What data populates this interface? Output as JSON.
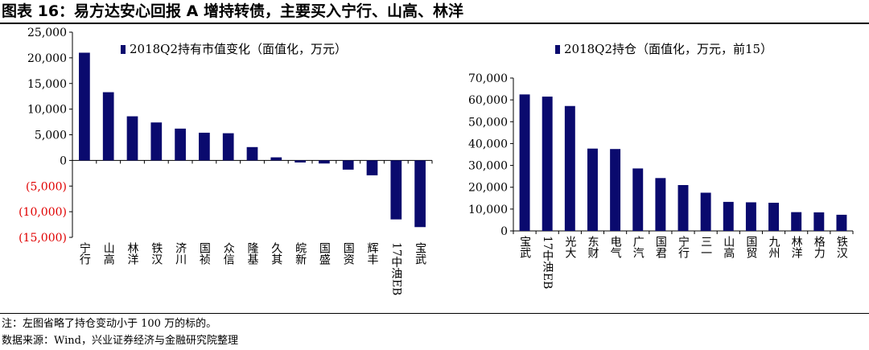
{
  "figure": {
    "title": "图表 16：易方达安心回报 A 增持转债，主要买入宁行、山高、林洋",
    "note": "注：左图省略了持仓变动小于 100 万的标的。",
    "source": "数据来源：Wind，兴业证券经济与金融研究院整理"
  },
  "colors": {
    "bar": "#0a0a6e",
    "negative_tick": "#e00000",
    "text": "#000000"
  },
  "chart_data": [
    {
      "type": "bar",
      "title": "",
      "xlabel": "",
      "ylabel": "",
      "legend": "top",
      "grid": false,
      "ylim": [
        -15000,
        25000
      ],
      "yticks": [
        25000,
        20000,
        15000,
        10000,
        5000,
        0,
        -5000,
        -10000,
        -15000
      ],
      "ytick_labels": [
        "25,000",
        "20,000",
        "15,000",
        "10,000",
        "5,000",
        "0",
        "(5,000)",
        "(10,000)",
        "(15,000)"
      ],
      "categories": [
        "宁行",
        "山高",
        "林洋",
        "铁汉",
        "济川",
        "国祯",
        "众信",
        "隆基",
        "久其",
        "皖新",
        "国盛",
        "国资",
        "辉丰",
        "17中油EB",
        "宝武"
      ],
      "series": [
        {
          "name": "2018Q2持有市值变化（面值化，万元）",
          "values": [
            21000,
            13300,
            8600,
            7400,
            6200,
            5400,
            5300,
            2600,
            600,
            -400,
            -600,
            -1800,
            -2900,
            -11500,
            -13000
          ]
        }
      ]
    },
    {
      "type": "bar",
      "title": "",
      "xlabel": "",
      "ylabel": "",
      "legend": "top",
      "grid": false,
      "ylim": [
        0,
        70000
      ],
      "yticks": [
        0,
        10000,
        20000,
        30000,
        40000,
        50000,
        60000,
        70000
      ],
      "ytick_labels": [
        "0",
        "10,000",
        "20,000",
        "30,000",
        "40,000",
        "50,000",
        "60,000",
        "70,000"
      ],
      "categories": [
        "宝武",
        "17中油EB",
        "光大",
        "东财",
        "电气",
        "广汽",
        "国君",
        "宁行",
        "三一",
        "山高",
        "国贸",
        "九州",
        "林洋",
        "格力",
        "铁汉"
      ],
      "series": [
        {
          "name": "2018Q2持仓（面值化，万元，前15）",
          "values": [
            62500,
            61500,
            57200,
            37700,
            37500,
            28600,
            24200,
            21000,
            17500,
            13300,
            13100,
            12900,
            8600,
            8500,
            7400
          ]
        }
      ]
    }
  ]
}
